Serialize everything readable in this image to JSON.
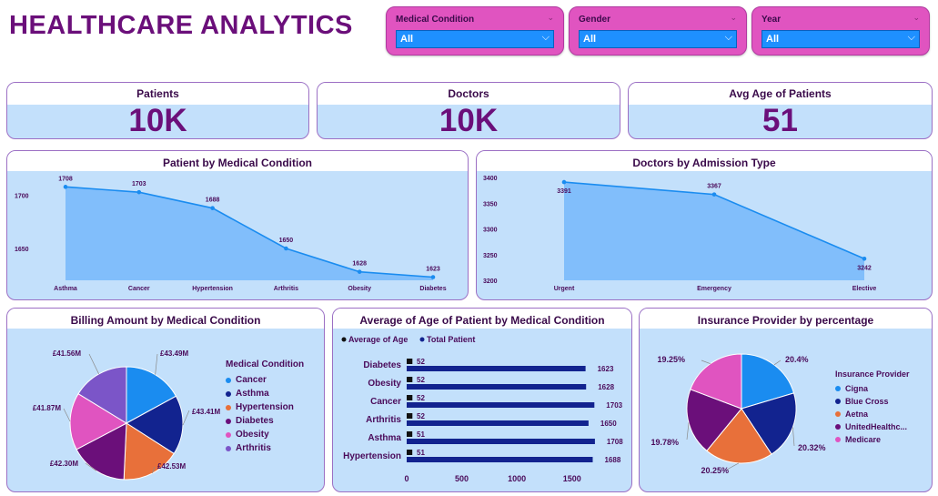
{
  "title": "HEALTHCARE ANALYTICS",
  "filters": [
    {
      "label": "Medical Condition",
      "value": "All"
    },
    {
      "label": "Gender",
      "value": "All"
    },
    {
      "label": "Year",
      "value": "All"
    }
  ],
  "kpis": [
    {
      "label": "Patients",
      "value": "10K"
    },
    {
      "label": "Doctors",
      "value": "10K"
    },
    {
      "label": "Avg Age of Patients",
      "value": "51"
    }
  ],
  "panels": {
    "patient_by_condition": "Patient by Medical Condition",
    "doctors_by_admission": "Doctors by Admission Type",
    "billing": "Billing Amount by Medical Condition",
    "avg_age": "Average of Age of Patient by Medical Condition",
    "insurance": "Insurance Provider by percentage"
  },
  "colors": {
    "accent": "#6b0f7a",
    "panel_bg": "#c3e0fb",
    "slicer": "#e054c0",
    "area": "#7dbcfb",
    "line": "#1a8cf0",
    "bar": "#12238f"
  },
  "chart_data": [
    {
      "type": "area",
      "title": "Patient by Medical Condition",
      "categories": [
        "Asthma",
        "Cancer",
        "Hypertension",
        "Arthritis",
        "Obesity",
        "Diabetes"
      ],
      "values": [
        1708,
        1703,
        1688,
        1650,
        1628,
        1623
      ],
      "yticks": [
        1650,
        1700
      ],
      "ylim": [
        1620,
        1716
      ]
    },
    {
      "type": "area",
      "title": "Doctors by Admission Type",
      "categories": [
        "Urgent",
        "Emergency",
        "Elective"
      ],
      "values": [
        3391,
        3367,
        3242
      ],
      "yticks": [
        3200,
        3250,
        3300,
        3350,
        3400
      ],
      "ylim": [
        3200,
        3400
      ]
    },
    {
      "type": "pie",
      "title": "Billing Amount by Medical Condition",
      "legend_title": "Medical Condition",
      "labels": [
        "Cancer",
        "Asthma",
        "Hypertension",
        "Diabetes",
        "Obesity",
        "Arthritis"
      ],
      "values": [
        43.49,
        43.41,
        42.53,
        42.3,
        41.87,
        41.56
      ],
      "value_labels": [
        "£43.49M",
        "£43.41M",
        "£42.53M",
        "£42.30M",
        "£41.87M",
        "£41.56M"
      ],
      "colors": [
        "#1a8cf0",
        "#12238f",
        "#e8703a",
        "#6b0f7a",
        "#e054c0",
        "#7b55c8"
      ]
    },
    {
      "type": "bar",
      "title": "Average of Age of Patient by Medical Condition",
      "categories": [
        "Diabetes",
        "Obesity",
        "Cancer",
        "Arthritis",
        "Asthma",
        "Hypertension"
      ],
      "series": [
        {
          "name": "Average of Age",
          "values": [
            52,
            52,
            52,
            52,
            51,
            51
          ]
        },
        {
          "name": "Total Patient",
          "values": [
            1623,
            1628,
            1703,
            1650,
            1708,
            1688
          ]
        }
      ],
      "xticks": [
        0,
        500,
        1000,
        1500
      ],
      "xlim": [
        0,
        1750
      ]
    },
    {
      "type": "pie",
      "title": "Insurance Provider by percentage",
      "legend_title": "Insurance Provider",
      "labels": [
        "Cigna",
        "Blue Cross",
        "Aetna",
        "UnitedHealthc...",
        "Medicare"
      ],
      "values": [
        20.4,
        20.32,
        20.25,
        19.78,
        19.25
      ],
      "value_labels": [
        "20.4%",
        "20.32%",
        "20.25%",
        "19.78%",
        "19.25%"
      ],
      "colors": [
        "#1a8cf0",
        "#12238f",
        "#e8703a",
        "#6b0f7a",
        "#e054c0"
      ]
    }
  ]
}
